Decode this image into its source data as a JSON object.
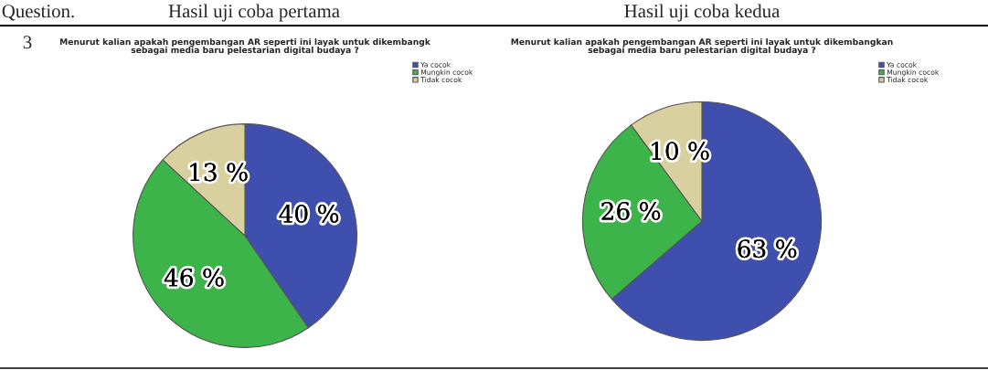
{
  "chart_data": [
    {
      "type": "pie",
      "title": "Hasil uji coba pertama",
      "subtitle": "Menurut kalian apakah pengembangan AR seperti ini layak untuk dikembangk\nsebagai media baru pelestarian digital budaya ?",
      "categories": [
        "Ya cocok",
        "Mungkin cocok",
        "Tidak cocok"
      ],
      "values": [
        40,
        46,
        13
      ],
      "colors": [
        "#3f4fae",
        "#3cb449",
        "#d8d09e"
      ],
      "value_labels": [
        "40 %",
        "46 %",
        "13 %"
      ],
      "legend": "top right",
      "annotations": [
        "Question.",
        "3"
      ]
    },
    {
      "type": "pie",
      "title": "Hasil uji coba kedua",
      "subtitle": "Menurut kalian apakah pengembangan AR seperti ini layak untuk dikembangkan\nsebagai media baru pelestarian digital budaya ?",
      "categories": [
        "Ya cocok",
        "Mungkin cocok",
        "Tidak cocok"
      ],
      "values": [
        63,
        26,
        10
      ],
      "colors": [
        "#3f4fae",
        "#3cb449",
        "#d8d09e"
      ],
      "value_labels": [
        "63 %",
        "26 %",
        "10 %"
      ],
      "legend": "top right"
    }
  ]
}
